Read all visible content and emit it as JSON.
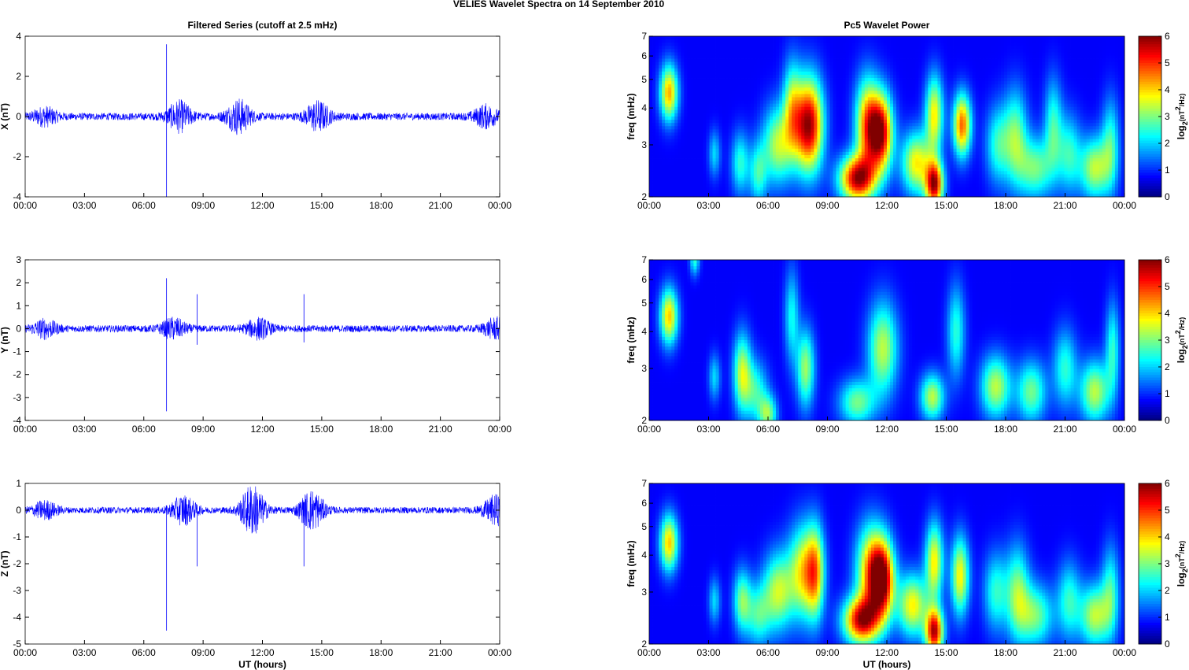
{
  "figure": {
    "suptitle": "VELIES Wavelet Spectra on 14 September 2010",
    "left_title": "Filtered Series (cutoff at 2.5 mHz)",
    "right_title": "Pc5 Wavelet Power",
    "xlabel": "UT (hours)",
    "xticks": [
      "00:00",
      "03:00",
      "06:00",
      "09:00",
      "12:00",
      "15:00",
      "18:00",
      "21:00",
      "00:00"
    ],
    "colorbar": {
      "label_main": "log",
      "label_sub": "2",
      "label_rest": "(nT",
      "label_sup": "2",
      "label_end": "/Hz)",
      "ticks": [
        0,
        1,
        2,
        3,
        4,
        5,
        6
      ],
      "colormap": "jet"
    },
    "series_color": "#0000ff"
  },
  "chart_data": [
    {
      "type": "line",
      "title": "Filtered Series (cutoff at 2.5 mHz)",
      "ylabel": "X (nT)",
      "x_range_hours": [
        0,
        24
      ],
      "ylim": [
        -4,
        4
      ],
      "yticks": [
        -4,
        -2,
        0,
        2,
        4
      ],
      "noise_amplitude_nT": 0.18,
      "bursts": [
        {
          "t_hours": 1.0,
          "amp_nT": 0.4
        },
        {
          "t_hours": 7.8,
          "amp_nT": 0.7
        },
        {
          "t_hours": 10.8,
          "amp_nT": 0.8
        },
        {
          "t_hours": 14.8,
          "amp_nT": 0.7
        },
        {
          "t_hours": 23.3,
          "amp_nT": 0.5
        }
      ],
      "spikes": [
        {
          "t_hours": 7.15,
          "min_nT": -4.0,
          "max_nT": 3.6
        }
      ]
    },
    {
      "type": "line",
      "ylabel": "Y (nT)",
      "x_range_hours": [
        0,
        24
      ],
      "ylim": [
        -4,
        3
      ],
      "yticks": [
        -4,
        -3,
        -2,
        -1,
        0,
        1,
        2,
        3
      ],
      "noise_amplitude_nT": 0.15,
      "bursts": [
        {
          "t_hours": 1.0,
          "amp_nT": 0.35
        },
        {
          "t_hours": 7.5,
          "amp_nT": 0.4
        },
        {
          "t_hours": 11.8,
          "amp_nT": 0.4
        },
        {
          "t_hours": 23.8,
          "amp_nT": 0.4
        }
      ],
      "spikes": [
        {
          "t_hours": 7.15,
          "min_nT": -3.6,
          "max_nT": 2.2
        },
        {
          "t_hours": 8.7,
          "min_nT": -0.7,
          "max_nT": 1.5
        },
        {
          "t_hours": 14.1,
          "min_nT": -0.6,
          "max_nT": 1.5
        }
      ]
    },
    {
      "type": "line",
      "xlabel": "UT (hours)",
      "ylabel": "Z (nT)",
      "x_range_hours": [
        0,
        24
      ],
      "ylim": [
        -5,
        1
      ],
      "yticks": [
        -5,
        -4,
        -3,
        -2,
        -1,
        0,
        1
      ],
      "noise_amplitude_nT": 0.12,
      "bursts": [
        {
          "t_hours": 1.0,
          "amp_nT": 0.3
        },
        {
          "t_hours": 8.0,
          "amp_nT": 0.5
        },
        {
          "t_hours": 11.5,
          "amp_nT": 0.9
        },
        {
          "t_hours": 14.5,
          "amp_nT": 0.7
        },
        {
          "t_hours": 23.8,
          "amp_nT": 0.5
        }
      ],
      "spikes": [
        {
          "t_hours": 7.15,
          "min_nT": -4.5,
          "max_nT": 0.0
        },
        {
          "t_hours": 8.7,
          "min_nT": -2.1,
          "max_nT": 0.2
        },
        {
          "t_hours": 14.1,
          "min_nT": -2.1,
          "max_nT": 0.3
        }
      ]
    },
    {
      "type": "heatmap",
      "title": "Pc5 Wavelet Power",
      "ylabel": "freq (mHz)",
      "y_scale": "log",
      "ylim_mHz": [
        2,
        7
      ],
      "yticks": [
        2,
        3,
        4,
        5,
        6,
        7
      ],
      "x_range_hours": [
        0,
        24
      ],
      "clim": [
        0,
        6
      ],
      "blobs": [
        {
          "t": 1.0,
          "f": 4.5,
          "v": 4.0,
          "ts": 0.15,
          "fs": 0.18
        },
        {
          "t": 3.3,
          "f": 2.8,
          "v": 1.5,
          "ts": 0.1,
          "fs": 0.15
        },
        {
          "t": 4.6,
          "f": 2.6,
          "v": 2.0,
          "ts": 0.15,
          "fs": 0.2
        },
        {
          "t": 5.5,
          "f": 2.4,
          "v": 2.0,
          "ts": 0.15,
          "fs": 0.2
        },
        {
          "t": 6.5,
          "f": 3.0,
          "v": 3.0,
          "ts": 0.25,
          "fs": 0.25
        },
        {
          "t": 7.2,
          "f": 4.0,
          "v": 2.5,
          "ts": 0.15,
          "fs": 0.3
        },
        {
          "t": 7.8,
          "f": 3.5,
          "v": 3.5,
          "ts": 0.2,
          "fs": 0.3
        },
        {
          "t": 8.3,
          "f": 3.5,
          "v": 3.5,
          "ts": 0.2,
          "fs": 0.3
        },
        {
          "t": 10.5,
          "f": 2.3,
          "v": 5.5,
          "ts": 0.3,
          "fs": 0.15
        },
        {
          "t": 11.0,
          "f": 3.5,
          "v": 4.0,
          "ts": 0.2,
          "fs": 0.3
        },
        {
          "t": 11.7,
          "f": 3.3,
          "v": 5.5,
          "ts": 0.2,
          "fs": 0.25
        },
        {
          "t": 13.5,
          "f": 2.6,
          "v": 3.5,
          "ts": 0.25,
          "fs": 0.2
        },
        {
          "t": 14.4,
          "f": 2.2,
          "v": 5.5,
          "ts": 0.15,
          "fs": 0.15
        },
        {
          "t": 14.4,
          "f": 3.8,
          "v": 3.5,
          "ts": 0.15,
          "fs": 0.25
        },
        {
          "t": 15.8,
          "f": 3.5,
          "v": 4.5,
          "ts": 0.15,
          "fs": 0.2
        },
        {
          "t": 17.6,
          "f": 3.0,
          "v": 2.0,
          "ts": 0.2,
          "fs": 0.25
        },
        {
          "t": 18.5,
          "f": 3.2,
          "v": 2.5,
          "ts": 0.2,
          "fs": 0.3
        },
        {
          "t": 19.5,
          "f": 2.5,
          "v": 2.5,
          "ts": 0.3,
          "fs": 0.2
        },
        {
          "t": 20.4,
          "f": 3.5,
          "v": 2.0,
          "ts": 0.15,
          "fs": 0.3
        },
        {
          "t": 21.2,
          "f": 2.8,
          "v": 2.0,
          "ts": 0.2,
          "fs": 0.25
        },
        {
          "t": 22.5,
          "f": 2.5,
          "v": 3.0,
          "ts": 0.25,
          "fs": 0.2
        },
        {
          "t": 23.3,
          "f": 3.0,
          "v": 2.0,
          "ts": 0.15,
          "fs": 0.3
        }
      ]
    },
    {
      "type": "heatmap",
      "ylabel": "freq (mHz)",
      "y_scale": "log",
      "ylim_mHz": [
        2,
        7
      ],
      "yticks": [
        2,
        3,
        4,
        5,
        6,
        7
      ],
      "x_range_hours": [
        0,
        24
      ],
      "clim": [
        0,
        6
      ],
      "blobs": [
        {
          "t": 1.0,
          "f": 4.5,
          "v": 3.8,
          "ts": 0.15,
          "fs": 0.18
        },
        {
          "t": 2.3,
          "f": 7.0,
          "v": 2.0,
          "ts": 0.08,
          "fs": 0.1
        },
        {
          "t": 3.3,
          "f": 2.8,
          "v": 1.5,
          "ts": 0.1,
          "fs": 0.15
        },
        {
          "t": 4.7,
          "f": 2.9,
          "v": 3.0,
          "ts": 0.15,
          "fs": 0.25
        },
        {
          "t": 5.4,
          "f": 2.5,
          "v": 2.0,
          "ts": 0.2,
          "fs": 0.2
        },
        {
          "t": 6.0,
          "f": 2.1,
          "v": 2.5,
          "ts": 0.15,
          "fs": 0.12
        },
        {
          "t": 7.2,
          "f": 4.5,
          "v": 1.8,
          "ts": 0.12,
          "fs": 0.3
        },
        {
          "t": 7.9,
          "f": 3.0,
          "v": 2.8,
          "ts": 0.15,
          "fs": 0.25
        },
        {
          "t": 10.5,
          "f": 2.3,
          "v": 2.5,
          "ts": 0.3,
          "fs": 0.15
        },
        {
          "t": 11.8,
          "f": 3.5,
          "v": 3.0,
          "ts": 0.25,
          "fs": 0.3
        },
        {
          "t": 14.3,
          "f": 2.4,
          "v": 3.0,
          "ts": 0.2,
          "fs": 0.15
        },
        {
          "t": 15.5,
          "f": 4.0,
          "v": 2.0,
          "ts": 0.15,
          "fs": 0.3
        },
        {
          "t": 17.5,
          "f": 2.6,
          "v": 3.0,
          "ts": 0.25,
          "fs": 0.2
        },
        {
          "t": 19.3,
          "f": 2.5,
          "v": 2.5,
          "ts": 0.25,
          "fs": 0.2
        },
        {
          "t": 21.0,
          "f": 3.0,
          "v": 2.0,
          "ts": 0.2,
          "fs": 0.25
        },
        {
          "t": 22.5,
          "f": 2.5,
          "v": 3.0,
          "ts": 0.25,
          "fs": 0.2
        },
        {
          "t": 23.4,
          "f": 3.5,
          "v": 2.0,
          "ts": 0.12,
          "fs": 0.3
        }
      ]
    },
    {
      "type": "heatmap",
      "xlabel": "UT (hours)",
      "ylabel": "freq (mHz)",
      "y_scale": "log",
      "ylim_mHz": [
        2,
        7
      ],
      "yticks": [
        2,
        3,
        4,
        5,
        6,
        7
      ],
      "x_range_hours": [
        0,
        24
      ],
      "clim": [
        0,
        6
      ],
      "blobs": [
        {
          "t": 1.0,
          "f": 4.4,
          "v": 3.8,
          "ts": 0.15,
          "fs": 0.18
        },
        {
          "t": 3.3,
          "f": 2.8,
          "v": 1.5,
          "ts": 0.1,
          "fs": 0.15
        },
        {
          "t": 4.7,
          "f": 2.8,
          "v": 2.5,
          "ts": 0.15,
          "fs": 0.2
        },
        {
          "t": 5.5,
          "f": 2.5,
          "v": 2.0,
          "ts": 0.2,
          "fs": 0.2
        },
        {
          "t": 6.5,
          "f": 3.0,
          "v": 3.0,
          "ts": 0.25,
          "fs": 0.25
        },
        {
          "t": 7.8,
          "f": 3.5,
          "v": 3.5,
          "ts": 0.25,
          "fs": 0.3
        },
        {
          "t": 8.4,
          "f": 3.5,
          "v": 3.0,
          "ts": 0.15,
          "fs": 0.3
        },
        {
          "t": 10.7,
          "f": 2.4,
          "v": 5.2,
          "ts": 0.3,
          "fs": 0.15
        },
        {
          "t": 11.2,
          "f": 3.5,
          "v": 4.0,
          "ts": 0.25,
          "fs": 0.3
        },
        {
          "t": 11.8,
          "f": 3.3,
          "v": 5.0,
          "ts": 0.2,
          "fs": 0.25
        },
        {
          "t": 13.3,
          "f": 2.7,
          "v": 3.5,
          "ts": 0.25,
          "fs": 0.2
        },
        {
          "t": 14.4,
          "f": 2.2,
          "v": 5.5,
          "ts": 0.15,
          "fs": 0.15
        },
        {
          "t": 14.4,
          "f": 3.8,
          "v": 3.5,
          "ts": 0.15,
          "fs": 0.25
        },
        {
          "t": 15.7,
          "f": 3.4,
          "v": 3.5,
          "ts": 0.15,
          "fs": 0.25
        },
        {
          "t": 17.5,
          "f": 3.0,
          "v": 2.0,
          "ts": 0.2,
          "fs": 0.25
        },
        {
          "t": 18.6,
          "f": 3.0,
          "v": 2.5,
          "ts": 0.2,
          "fs": 0.3
        },
        {
          "t": 19.5,
          "f": 2.5,
          "v": 2.5,
          "ts": 0.3,
          "fs": 0.2
        },
        {
          "t": 21.2,
          "f": 2.8,
          "v": 2.0,
          "ts": 0.2,
          "fs": 0.25
        },
        {
          "t": 22.5,
          "f": 2.5,
          "v": 3.0,
          "ts": 0.25,
          "fs": 0.2
        },
        {
          "t": 23.3,
          "f": 3.0,
          "v": 2.0,
          "ts": 0.15,
          "fs": 0.3
        }
      ]
    }
  ]
}
